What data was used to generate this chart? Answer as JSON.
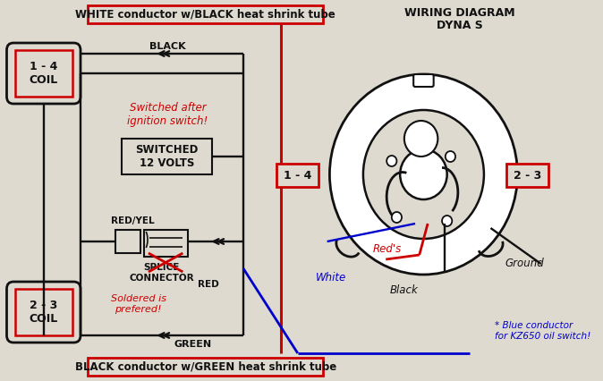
{
  "bg_color": "#dedad0",
  "title_line1": "WIRING DIAGRAM",
  "title_line2": "DYNA S",
  "top_label": "WHITE conductor w/BLACK heat shrink tube",
  "bottom_label": "BLACK conductor w/GREEN heat shrink tube",
  "coil_14_label": "1 - 4\nCOIL",
  "coil_23_label": "2 - 3\nCOIL",
  "switched_label": "SWITCHED\n12 VOLTS",
  "switched_note": "Switched after\nignition switch!",
  "splice_label": "SPLICE\nCONNECTOR",
  "soldered_note": "Soldered is\nprefered!",
  "redyel_label": "RED/YEL",
  "red_label": "RED",
  "black_label": "BLACK",
  "green_label": "GREEN",
  "label_14": "1 - 4",
  "label_23": "2 - 3",
  "label_white": "White",
  "label_reds": "Red's",
  "label_black": "Black",
  "label_ground": "Ground",
  "label_blue": "* Blue conductor\nfor KZ650 oil switch!",
  "color_red": "#cc0000",
  "color_blue": "#0000cc",
  "color_black": "#111111",
  "color_green": "#006600",
  "lw": 1.7
}
